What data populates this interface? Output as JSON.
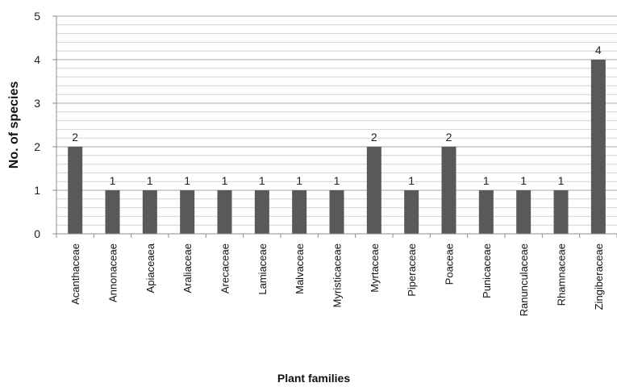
{
  "chart_data": {
    "type": "bar",
    "title": "",
    "xlabel": "Plant families",
    "ylabel": "No. of species",
    "ylim": [
      0,
      5
    ],
    "y_ticks": [
      0,
      1,
      2,
      3,
      4,
      5
    ],
    "grid": true,
    "legend": "none",
    "data_labels": true,
    "colors": {
      "bar": "#595959",
      "major_grid": "#a6a6a6",
      "minor_grid": "#d4d4d4",
      "axis": "#8c8c8c"
    },
    "categories": [
      "Acanthaceae",
      "Annonaceae",
      "Apiaceaea",
      "Araliaceae",
      "Arecaceae",
      "Lamiaceae",
      "Malvaceae",
      "Myristicaceae",
      "Myrtaceae",
      "Piperaceae",
      "Poaceae",
      "Punicaceae",
      "Ranunculaceae",
      "Rhamnaceae",
      "Zingiberaceae"
    ],
    "values": [
      2,
      1,
      1,
      1,
      1,
      1,
      1,
      1,
      2,
      1,
      2,
      1,
      1,
      1,
      4
    ]
  }
}
